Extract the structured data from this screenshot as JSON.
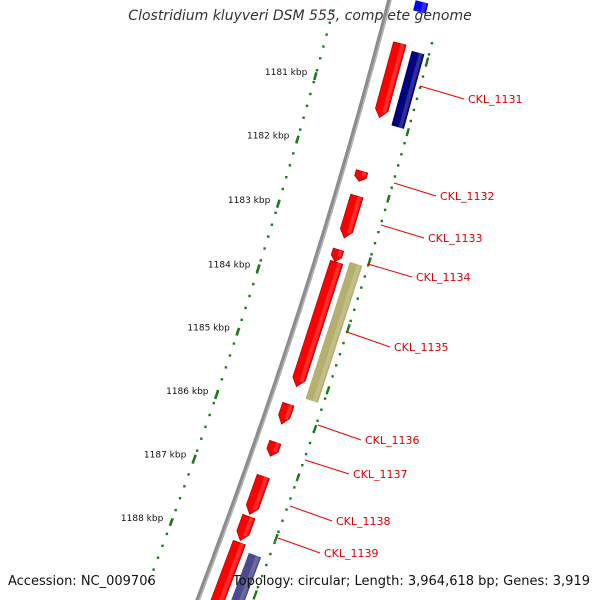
{
  "title": "Clostridium kluyveri DSM 555, complete genome",
  "footer": {
    "accession": "Accession: NC_009706",
    "summary": "Topology: circular; Length: 3,964,618 bp; Genes: 3,919"
  },
  "colors": {
    "backbone": "#8c8c8c",
    "tick": "#1a7a1a",
    "gene": "#ff0000",
    "gene_dark": "#a00000",
    "label": "#dd0000",
    "leader": "#ee0000",
    "navy": "#000080",
    "olive": "#b5b070",
    "slate": "#4a4a8c",
    "blue": "#0000ee"
  },
  "scale_ticks": [
    {
      "label": "1181 kbp"
    },
    {
      "label": "1182 kbp"
    },
    {
      "label": "1183 kbp"
    },
    {
      "label": "1184 kbp"
    },
    {
      "label": "1185 kbp"
    },
    {
      "label": "1186 kbp"
    },
    {
      "label": "1187 kbp"
    },
    {
      "label": "1188 kbp"
    }
  ],
  "gene_labels": [
    "CKL_1131",
    "CKL_1132",
    "CKL_1133",
    "CKL_1134",
    "CKL_1135",
    "CKL_1136",
    "CKL_1137",
    "CKL_1138",
    "CKL_1139"
  ]
}
